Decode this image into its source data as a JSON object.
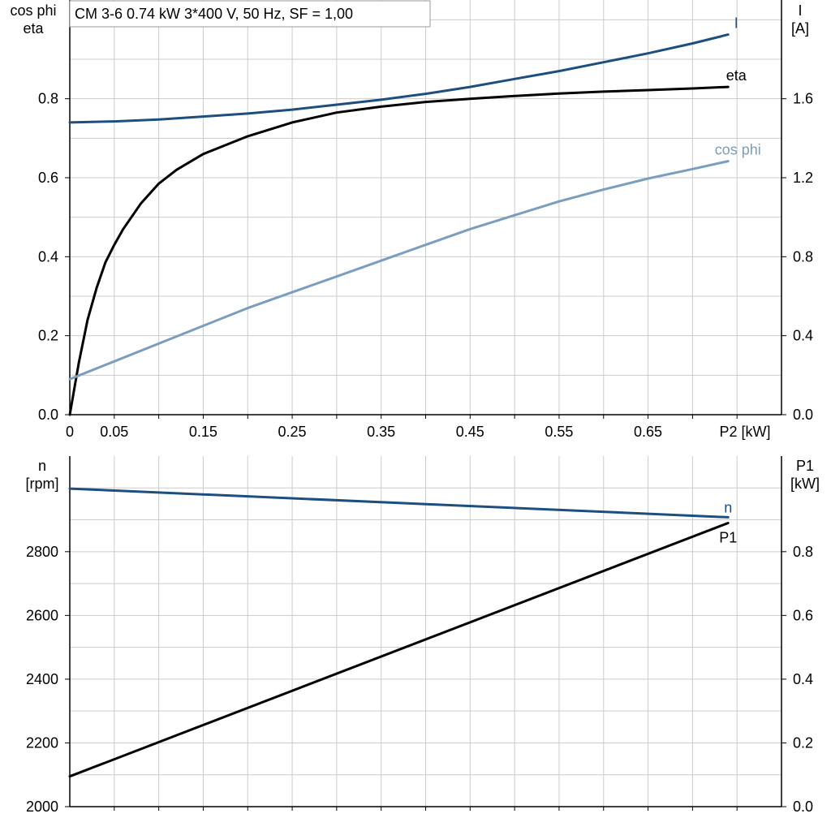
{
  "title": "CM 3-6   0.74 kW   3*400 V, 50 Hz, SF = 1,00",
  "colors": {
    "I": "#1d4e80",
    "eta": "#000000",
    "cos_phi": "#7a9ebf",
    "n": "#1d4e80",
    "P1": "#000000",
    "grid": "#cccccc"
  },
  "chart_data": [
    {
      "type": "line",
      "x_axis": {
        "label": "P2 [kW]",
        "range": [
          0,
          0.8
        ],
        "tick_labels": [
          "0",
          "0.05",
          "0.15",
          "0.25",
          "0.35",
          "0.45",
          "0.55",
          "0.65"
        ],
        "ticks": [
          0,
          0.05,
          0.15,
          0.25,
          0.35,
          0.45,
          0.55,
          0.65
        ]
      },
      "y_left": {
        "label_lines": [
          "cos phi",
          "eta"
        ],
        "range": [
          0,
          1.05
        ],
        "ticks": [
          0.0,
          0.2,
          0.4,
          0.6,
          0.8
        ],
        "tick_labels": [
          "0.0",
          "0.2",
          "0.4",
          "0.6",
          "0.8"
        ]
      },
      "y_right": {
        "label_lines": [
          "I",
          "[A]"
        ],
        "range": [
          0,
          2.1
        ],
        "ticks": [
          0.0,
          0.4,
          0.8,
          1.2,
          1.6
        ],
        "tick_labels": [
          "0.0",
          "0.4",
          "0.8",
          "1.2",
          "1.6"
        ]
      },
      "grid": true,
      "series": [
        {
          "name": "I",
          "axis": "right",
          "color_key": "I",
          "x": [
            0,
            0.05,
            0.1,
            0.15,
            0.2,
            0.25,
            0.3,
            0.35,
            0.4,
            0.45,
            0.5,
            0.55,
            0.6,
            0.65,
            0.7,
            0.74
          ],
          "y": [
            1.48,
            1.485,
            1.495,
            1.51,
            1.525,
            1.545,
            1.57,
            1.595,
            1.625,
            1.66,
            1.7,
            1.74,
            1.785,
            1.83,
            1.88,
            1.925
          ]
        },
        {
          "name": "eta",
          "axis": "left",
          "color_key": "eta",
          "x": [
            0,
            0.01,
            0.02,
            0.03,
            0.04,
            0.05,
            0.06,
            0.08,
            0.1,
            0.12,
            0.15,
            0.2,
            0.25,
            0.3,
            0.35,
            0.4,
            0.45,
            0.5,
            0.55,
            0.6,
            0.65,
            0.7,
            0.74
          ],
          "y": [
            0.0,
            0.13,
            0.24,
            0.32,
            0.385,
            0.43,
            0.47,
            0.535,
            0.585,
            0.62,
            0.66,
            0.705,
            0.74,
            0.765,
            0.78,
            0.792,
            0.8,
            0.807,
            0.813,
            0.818,
            0.822,
            0.826,
            0.83
          ]
        },
        {
          "name": "cos phi",
          "axis": "left",
          "color_key": "cos_phi",
          "x": [
            0,
            0.05,
            0.1,
            0.15,
            0.2,
            0.25,
            0.3,
            0.35,
            0.4,
            0.45,
            0.5,
            0.55,
            0.6,
            0.65,
            0.7,
            0.74
          ],
          "y": [
            0.09,
            0.135,
            0.18,
            0.225,
            0.27,
            0.31,
            0.35,
            0.39,
            0.43,
            0.47,
            0.505,
            0.54,
            0.57,
            0.598,
            0.622,
            0.642
          ]
        }
      ]
    },
    {
      "type": "line",
      "x_axis": {
        "range": [
          0,
          0.8
        ]
      },
      "y_left": {
        "label_lines": [
          "n",
          "[rpm]"
        ],
        "range": [
          2000,
          3100
        ],
        "ticks": [
          2000,
          2200,
          2400,
          2600,
          2800
        ],
        "tick_labels": [
          "2000",
          "2200",
          "2400",
          "2600",
          "2800"
        ]
      },
      "y_right": {
        "label_lines": [
          "P1",
          "[kW]"
        ],
        "range": [
          0,
          1.1
        ],
        "ticks": [
          0.0,
          0.2,
          0.4,
          0.6,
          0.8
        ],
        "tick_labels": [
          "0.0",
          "0.2",
          "0.4",
          "0.6",
          "0.8"
        ]
      },
      "grid": true,
      "series": [
        {
          "name": "n",
          "axis": "left",
          "color_key": "n",
          "x": [
            0,
            0.74
          ],
          "y": [
            2998,
            2908
          ]
        },
        {
          "name": "P1",
          "axis": "right",
          "color_key": "P1",
          "x": [
            0,
            0.74
          ],
          "y": [
            0.095,
            0.89
          ]
        }
      ]
    }
  ]
}
